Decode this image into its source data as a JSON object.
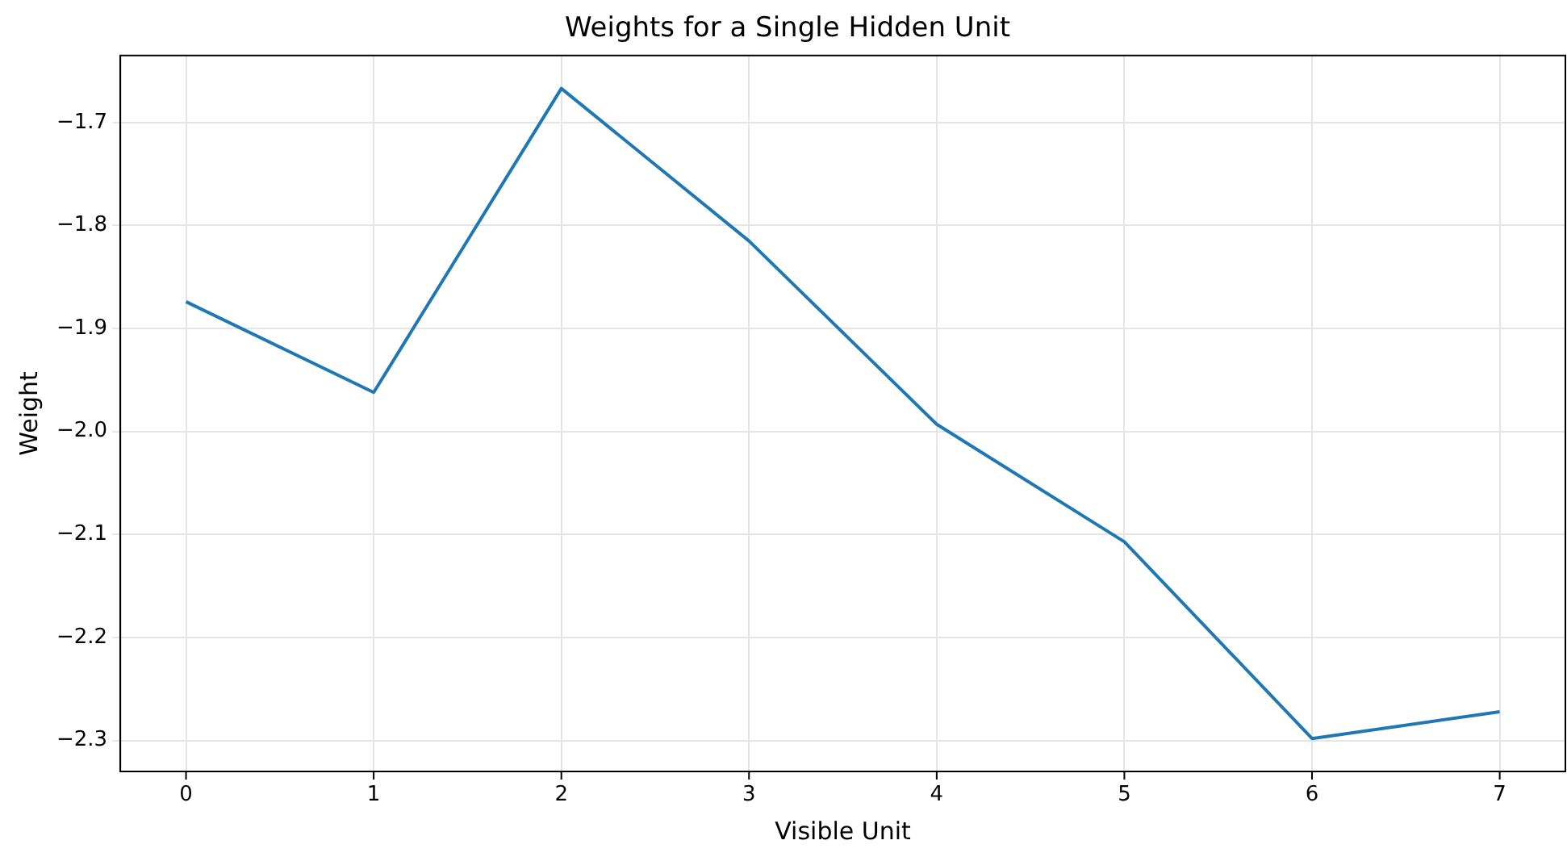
{
  "chart_data": {
    "type": "line",
    "title": "Weights for a Single Hidden Unit",
    "xlabel": "Visible Unit",
    "ylabel": "Weight",
    "x": [
      0,
      1,
      2,
      3,
      4,
      5,
      6,
      7
    ],
    "series": [
      {
        "color": "#1f77b4",
        "values": [
          -1.874,
          -1.962,
          -1.667,
          -1.815,
          -1.993,
          -2.107,
          -2.298,
          -2.272
        ]
      }
    ],
    "xlim": [
      -0.35,
      7.35
    ],
    "xticks": [
      0,
      1,
      2,
      3,
      4,
      5,
      6,
      7
    ],
    "ylim": [
      -2.33,
      -1.635
    ],
    "yticks": [
      {
        "value": -2.3,
        "label": "−2.3"
      },
      {
        "value": -2.2,
        "label": "−2.2"
      },
      {
        "value": -2.1,
        "label": "−2.1"
      },
      {
        "value": -2.0,
        "label": "−2.0"
      },
      {
        "value": -1.9,
        "label": "−1.9"
      },
      {
        "value": -1.8,
        "label": "−1.8"
      },
      {
        "value": -1.7,
        "label": "−1.7"
      }
    ],
    "grid": true,
    "legend": false,
    "marker": "none",
    "line_style": "solid"
  }
}
